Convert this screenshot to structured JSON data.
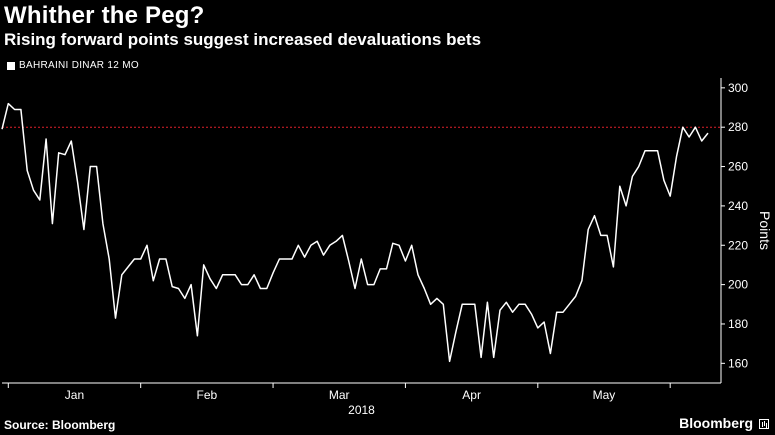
{
  "header": {
    "title": "Whither the Peg?",
    "subtitle": "Rising forward points suggest increased devaluations bets"
  },
  "footer": {
    "source": "Source: Bloomberg",
    "brand": "Bloomberg"
  },
  "colors": {
    "background": "#000000",
    "line": "#ffffff",
    "reference_line": "#e0202a"
  },
  "chart_data": {
    "type": "line",
    "series": [
      {
        "name": "BAHRAINI DINAR 12 MO",
        "values": [
          279,
          292,
          289,
          289,
          258,
          248,
          243,
          274,
          231,
          267,
          266,
          273,
          252,
          228,
          260,
          260,
          231,
          213,
          183,
          205,
          209,
          213,
          213,
          220,
          202,
          213,
          213,
          199,
          198,
          193,
          200,
          174,
          210,
          203,
          198,
          205,
          205,
          205,
          200,
          200,
          205,
          198,
          198,
          206,
          213,
          213,
          213,
          220,
          214,
          220,
          222,
          215,
          220,
          222,
          225,
          212,
          198,
          213,
          200,
          200,
          208,
          208,
          221,
          220,
          212,
          220,
          205,
          198,
          190,
          193,
          190,
          161,
          176,
          190,
          190,
          190,
          163,
          191,
          163,
          187,
          191,
          186,
          190,
          190,
          185,
          178,
          181,
          165,
          186,
          186,
          190,
          194,
          202,
          228,
          235,
          225,
          225,
          209,
          250,
          240,
          255,
          260,
          268,
          268,
          268,
          253,
          245,
          265,
          280,
          275,
          280,
          273,
          277
        ]
      }
    ],
    "x_tick_labels": [
      "Jan",
      "Feb",
      "Mar",
      "Apr",
      "May"
    ],
    "x_year_label": "2018",
    "y_ticks": [
      160,
      180,
      200,
      220,
      240,
      260,
      280,
      300
    ],
    "ylim": [
      150,
      305
    ],
    "ylabel": "Points",
    "reference_line": 280,
    "grid": false,
    "legend_position": "top-left"
  }
}
